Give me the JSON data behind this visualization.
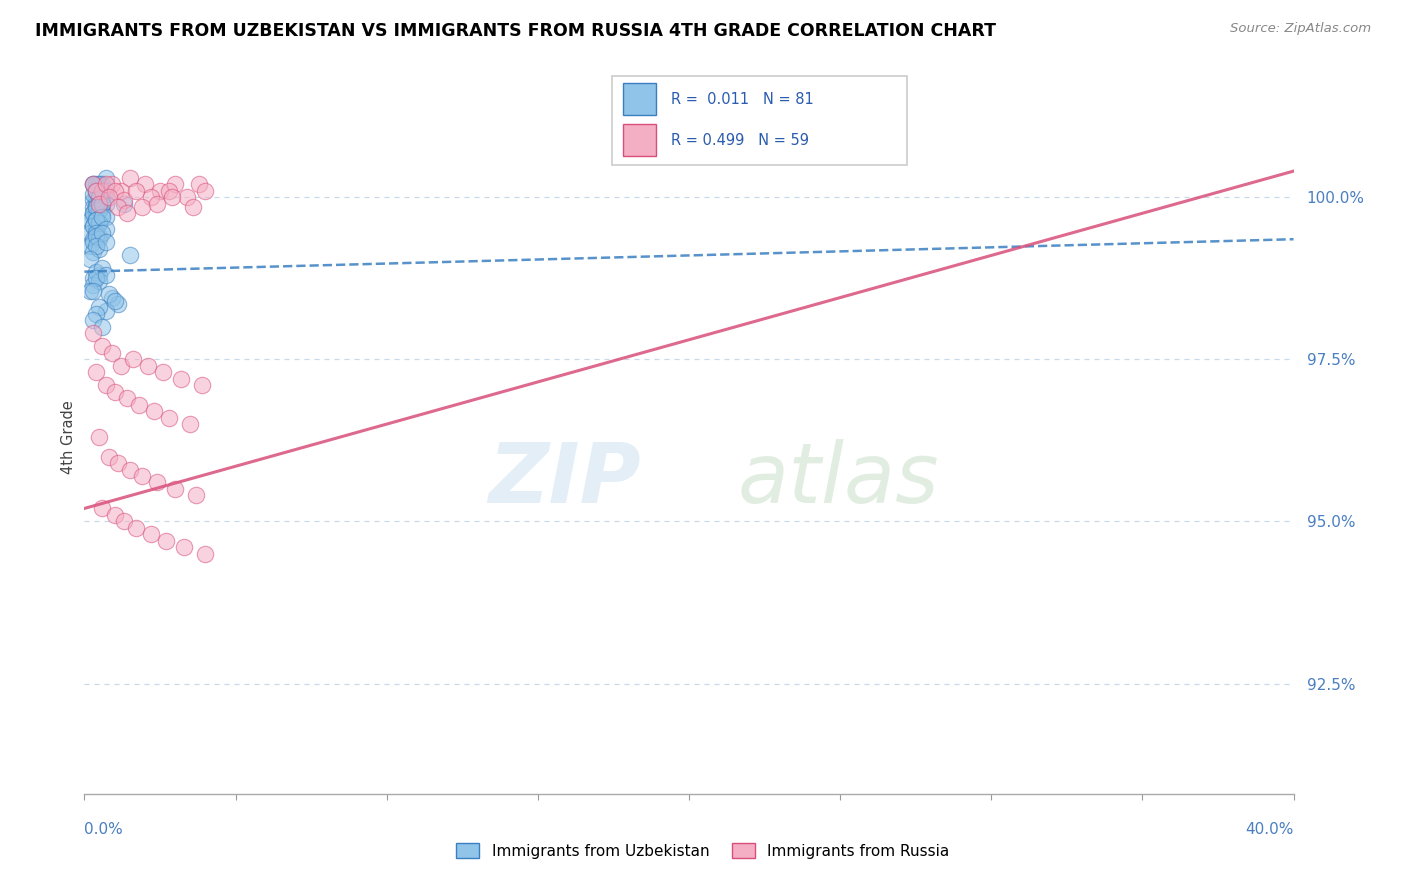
{
  "title": "IMMIGRANTS FROM UZBEKISTAN VS IMMIGRANTS FROM RUSSIA 4TH GRADE CORRELATION CHART",
  "source": "Source: ZipAtlas.com",
  "ylabel": "4th Grade",
  "y_ticks": [
    0.925,
    0.95,
    0.975,
    1.0
  ],
  "y_tick_labels": [
    "92.5%",
    "95.0%",
    "97.5%",
    "100.0%"
  ],
  "x_min": 0.0,
  "x_max": 0.4,
  "y_min": 0.908,
  "y_max": 1.018,
  "legend_R_uzbek": "0.011",
  "legend_N_uzbek": "81",
  "legend_R_russia": "0.499",
  "legend_N_russia": "59",
  "color_uzbek": "#90c4e8",
  "color_russia": "#f4afc5",
  "color_trendline_uzbek": "#3a7fc1",
  "color_trendline_russia": "#d94f7a",
  "uzbek_x": [
    0.003,
    0.005,
    0.007,
    0.004,
    0.006,
    0.003,
    0.005,
    0.004,
    0.006,
    0.003,
    0.007,
    0.004,
    0.005,
    0.003,
    0.006,
    0.004,
    0.005,
    0.007,
    0.003,
    0.005,
    0.004,
    0.006,
    0.003,
    0.005,
    0.004,
    0.007,
    0.003,
    0.005,
    0.004,
    0.006,
    0.002,
    0.004,
    0.003,
    0.005,
    0.004,
    0.006,
    0.003,
    0.005,
    0.004,
    0.007,
    0.002,
    0.004,
    0.003,
    0.005,
    0.004,
    0.006,
    0.003,
    0.005,
    0.004,
    0.007,
    0.002,
    0.003,
    0.005,
    0.004,
    0.006,
    0.003,
    0.005,
    0.004,
    0.007,
    0.002,
    0.003,
    0.005,
    0.004,
    0.006,
    0.003,
    0.005,
    0.004,
    0.007,
    0.002,
    0.003,
    0.009,
    0.011,
    0.007,
    0.008,
    0.01,
    0.005,
    0.004,
    0.003,
    0.006,
    0.013,
    0.015
  ],
  "uzbek_y": [
    1.002,
    1.001,
    1.003,
    1.0,
    1.002,
    0.9995,
    1.001,
    1.002,
    1.0,
    0.9985,
    1.001,
    0.999,
    1.002,
    1.0005,
    0.9995,
    1.001,
    0.9985,
    1.0,
    1.002,
    0.998,
    1.001,
    0.999,
    0.9975,
    1.0,
    0.9985,
    0.999,
    0.997,
    0.9985,
    0.998,
    0.9975,
    0.9965,
    0.997,
    0.9975,
    0.998,
    0.9985,
    0.999,
    0.9955,
    0.996,
    0.9965,
    0.997,
    0.9945,
    0.995,
    0.9955,
    0.996,
    0.9965,
    0.997,
    0.9935,
    0.994,
    0.9945,
    0.995,
    0.9925,
    0.993,
    0.9935,
    0.994,
    0.9945,
    0.9915,
    0.992,
    0.9925,
    0.993,
    0.9905,
    0.9875,
    0.988,
    0.9885,
    0.989,
    0.9865,
    0.987,
    0.9875,
    0.988,
    0.9855,
    0.9855,
    0.9845,
    0.9835,
    0.9825,
    0.985,
    0.984,
    0.983,
    0.982,
    0.981,
    0.98,
    0.999,
    0.991
  ],
  "russia_x": [
    0.003,
    0.006,
    0.009,
    0.012,
    0.015,
    0.02,
    0.025,
    0.03,
    0.038,
    0.004,
    0.007,
    0.01,
    0.013,
    0.017,
    0.022,
    0.028,
    0.034,
    0.04,
    0.005,
    0.008,
    0.011,
    0.014,
    0.019,
    0.024,
    0.029,
    0.036,
    0.003,
    0.006,
    0.009,
    0.012,
    0.016,
    0.021,
    0.026,
    0.032,
    0.039,
    0.004,
    0.007,
    0.01,
    0.014,
    0.018,
    0.023,
    0.028,
    0.035,
    0.005,
    0.008,
    0.011,
    0.015,
    0.019,
    0.024,
    0.03,
    0.037,
    0.006,
    0.01,
    0.013,
    0.017,
    0.022,
    0.027,
    0.033,
    0.04
  ],
  "russia_y": [
    1.002,
    1.001,
    1.002,
    1.001,
    1.003,
    1.002,
    1.001,
    1.002,
    1.002,
    1.001,
    1.002,
    1.001,
    0.9995,
    1.001,
    1.0,
    1.001,
    1.0,
    1.001,
    0.999,
    1.0,
    0.9985,
    0.9975,
    0.9985,
    0.999,
    1.0,
    0.9985,
    0.979,
    0.977,
    0.976,
    0.974,
    0.975,
    0.974,
    0.973,
    0.972,
    0.971,
    0.973,
    0.971,
    0.97,
    0.969,
    0.968,
    0.967,
    0.966,
    0.965,
    0.963,
    0.96,
    0.959,
    0.958,
    0.957,
    0.956,
    0.955,
    0.954,
    0.952,
    0.951,
    0.95,
    0.949,
    0.948,
    0.947,
    0.946,
    0.945
  ]
}
